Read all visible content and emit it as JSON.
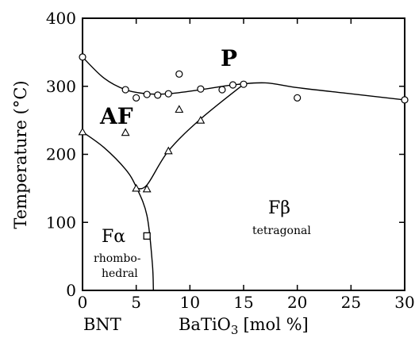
{
  "chart_data": {
    "type": "scatter",
    "xlabel": "BaTiO",
    "xlabel_sub": "3",
    "xlabel_unit": "[mol %]",
    "ylabel": "Temperature (°C)",
    "left_label": "BNT",
    "xlim": [
      0,
      30
    ],
    "ylim": [
      0,
      400
    ],
    "xticks": [
      0,
      5,
      10,
      15,
      20,
      25,
      30
    ],
    "yticks": [
      0,
      100,
      200,
      300,
      400
    ],
    "regions": [
      {
        "name": "P",
        "sublabel": []
      },
      {
        "name": "AF",
        "sublabel": []
      },
      {
        "name": "Fβ",
        "sublabel": [
          "tetragonal"
        ]
      },
      {
        "name": "Fα",
        "sublabel": [
          "rhombo-",
          "hedral"
        ]
      }
    ],
    "series": [
      {
        "marker": "circle",
        "points": [
          [
            0,
            343
          ],
          [
            4,
            295
          ],
          [
            5,
            283
          ],
          [
            6,
            288
          ],
          [
            7,
            287
          ],
          [
            8,
            289
          ],
          [
            9,
            318
          ],
          [
            11,
            296
          ],
          [
            13,
            295
          ],
          [
            14,
            302
          ],
          [
            15,
            303
          ],
          [
            20,
            283
          ],
          [
            30,
            280
          ]
        ]
      },
      {
        "marker": "triangle",
        "points": [
          [
            0,
            233
          ],
          [
            4,
            232
          ],
          [
            5,
            150
          ],
          [
            6,
            149
          ],
          [
            8,
            205
          ],
          [
            9,
            266
          ],
          [
            11,
            250
          ]
        ]
      },
      {
        "marker": "square",
        "points": [
          [
            6,
            80
          ]
        ]
      }
    ],
    "boundaries": [
      {
        "id": "p-boundary",
        "points": [
          [
            0,
            343
          ],
          [
            2,
            312
          ],
          [
            4,
            295
          ],
          [
            6,
            289
          ],
          [
            8,
            289
          ],
          [
            11,
            295
          ],
          [
            14,
            302
          ],
          [
            17,
            305
          ],
          [
            20,
            298
          ],
          [
            25,
            289
          ],
          [
            30,
            280
          ]
        ]
      },
      {
        "id": "af-boundary",
        "points": [
          [
            0,
            233
          ],
          [
            2,
            210
          ],
          [
            4,
            178
          ],
          [
            5,
            152
          ],
          [
            6,
            110
          ],
          [
            6.5,
            40
          ],
          [
            6.6,
            0
          ]
        ]
      },
      {
        "id": "ffa-boundary",
        "points": [
          [
            5,
            150
          ],
          [
            6,
            155
          ],
          [
            8,
            205
          ],
          [
            11,
            252
          ],
          [
            15,
            303
          ]
        ]
      }
    ]
  }
}
